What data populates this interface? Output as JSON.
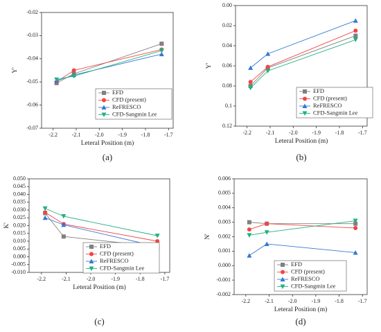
{
  "chart_data": [
    {
      "type": "line",
      "caption": "(a)",
      "xlabel": "Leteral Position (m)",
      "ylabel": "Y'",
      "x": [
        -2.185,
        -2.11,
        -1.73
      ],
      "xlim": [
        -2.25,
        -1.68
      ],
      "xticks": [
        -2.2,
        -2.1,
        {
          "value": -2,
          "label": "-2.0"
        },
        -1.9,
        -1.8,
        -1.7
      ],
      "ylim": [
        -0.07,
        -0.02
      ],
      "yticks": [
        -0.07,
        -0.06,
        -0.05,
        -0.04,
        -0.03,
        -0.02
      ],
      "legend": "lower right",
      "series": [
        {
          "name": "EFD",
          "color": "#808080",
          "marker": "square",
          "values": [
            -0.0505,
            -0.0465,
            -0.0335
          ]
        },
        {
          "name": "CFD (present)",
          "color": "#f24545",
          "marker": "circle",
          "values": [
            -0.05,
            -0.045,
            -0.036
          ]
        },
        {
          "name": "ReFRESCO",
          "color": "#3478d4",
          "marker": "triangle-up",
          "values": [
            -0.0495,
            -0.047,
            -0.038
          ]
        },
        {
          "name": "CFD-Sangmin Lee",
          "color": "#22b07f",
          "marker": "triangle-down",
          "values": [
            -0.049,
            -0.0475,
            -0.0365
          ]
        }
      ]
    },
    {
      "type": "line",
      "caption": "(b)",
      "xlabel": "Leteral Position (m)",
      "ylabel": "Y'",
      "x": [
        -2.185,
        -2.11,
        -1.73
      ],
      "xlim": [
        -2.25,
        -1.68
      ],
      "xticks": [
        -2.2,
        -2.1,
        {
          "value": -2,
          "label": "-2.0"
        },
        -1.9,
        -1.8,
        -1.7
      ],
      "ylim": [
        0.12,
        0
      ],
      "yticks": [
        {
          "value": 0,
          "label": "0.00"
        },
        0.02,
        0.04,
        0.06,
        0.08,
        0.1,
        0.12
      ],
      "legend": "lower right",
      "series": [
        {
          "name": "EFD",
          "color": "#808080",
          "marker": "square",
          "values": [
            0.08,
            0.062,
            0.03
          ]
        },
        {
          "name": "CFD (present)",
          "color": "#f24545",
          "marker": "circle",
          "values": [
            0.076,
            0.061,
            0.025
          ]
        },
        {
          "name": "ReFRESCO",
          "color": "#3478d4",
          "marker": "triangle-up",
          "values": [
            0.062,
            0.048,
            0.015
          ]
        },
        {
          "name": "CFD-Sangmin Lee",
          "color": "#22b07f",
          "marker": "triangle-down",
          "values": [
            0.082,
            0.065,
            0.034
          ]
        }
      ]
    },
    {
      "type": "line",
      "caption": "(c)",
      "xlabel": "Leteral Position (m)",
      "ylabel": "K'",
      "x": [
        -2.185,
        -2.11,
        -1.73
      ],
      "xlim": [
        -2.25,
        -1.68
      ],
      "xticks": [
        -2.2,
        -2.1,
        {
          "value": -2,
          "label": "-2.0"
        },
        -1.9,
        -1.8,
        -1.7
      ],
      "ylim": [
        -0.01,
        0.05
      ],
      "yticks": [
        {
          "value": -0.01,
          "label": "-0.010"
        },
        -0.005,
        {
          "value": 0,
          "label": "0.000"
        },
        0.005,
        {
          "value": 0.01,
          "label": "0.010"
        },
        0.015,
        {
          "value": 0.02,
          "label": "0.020"
        },
        0.025,
        {
          "value": 0.03,
          "label": "0.030"
        },
        0.035,
        {
          "value": 0.04,
          "label": "0.040"
        },
        0.045,
        {
          "value": 0.05,
          "label": "0.050"
        }
      ],
      "legend": "lower right",
      "series": [
        {
          "name": "EFD",
          "color": "#808080",
          "marker": "square",
          "values": [
            0.028,
            0.013,
            0.0065
          ]
        },
        {
          "name": "CFD (present)",
          "color": "#f24545",
          "marker": "circle",
          "values": [
            0.0285,
            0.021,
            0.01
          ]
        },
        {
          "name": "ReFRESCO",
          "color": "#3478d4",
          "marker": "triangle-up",
          "values": [
            0.025,
            0.0205,
            0.0065
          ]
        },
        {
          "name": "CFD-Sangmin Lee",
          "color": "#22b07f",
          "marker": "triangle-down",
          "values": [
            0.031,
            0.026,
            0.0135
          ]
        }
      ]
    },
    {
      "type": "line",
      "caption": "(d)",
      "xlabel": "Leteral Position (m)",
      "ylabel": "N'",
      "x": [
        -2.185,
        -2.11,
        -1.73
      ],
      "xlim": [
        -2.25,
        -1.68
      ],
      "xticks": [
        -2.2,
        -2.1,
        {
          "value": -2,
          "label": "-2.0"
        },
        -1.9,
        -1.8,
        -1.7
      ],
      "ylim": [
        -0.002,
        0.006
      ],
      "yticks": [
        -0.002,
        -0.001,
        {
          "value": 0,
          "label": "0.000"
        },
        0.001,
        0.002,
        0.003,
        0.004,
        0.005,
        0.006
      ],
      "legend": "lower right",
      "series": [
        {
          "name": "EFD",
          "color": "#808080",
          "marker": "square",
          "values": [
            0.003,
            0.0029,
            0.0029
          ]
        },
        {
          "name": "CFD (present)",
          "color": "#f24545",
          "marker": "circle",
          "values": [
            0.0025,
            0.0029,
            0.0026
          ]
        },
        {
          "name": "ReFRESCO",
          "color": "#3478d4",
          "marker": "triangle-up",
          "values": [
            0.0007,
            0.0015,
            0.0009
          ]
        },
        {
          "name": "CFD-Sangmin Lee",
          "color": "#22b07f",
          "marker": "triangle-down",
          "values": [
            0.0021,
            0.0023,
            0.0031
          ]
        }
      ]
    }
  ]
}
